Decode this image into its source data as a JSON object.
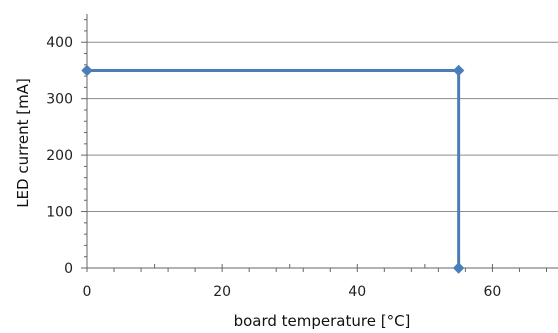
{
  "chart_data": {
    "type": "line",
    "title": "",
    "xlabel": "board temperature [°C]",
    "ylabel": "LED current [mA]",
    "xlim": [
      0,
      70
    ],
    "ylim": [
      0,
      450
    ],
    "x_ticks": [
      0,
      20,
      40,
      60
    ],
    "y_ticks": [
      0,
      100,
      200,
      300,
      400
    ],
    "x_tick_labels": [
      "0",
      "20",
      "40",
      "60"
    ],
    "y_tick_labels": [
      "0",
      "100",
      "200",
      "300",
      "400"
    ],
    "grid": "horizontal",
    "legend": "none",
    "series": [
      {
        "color": "#4a7ebb",
        "marker": "diamond",
        "points": [
          {
            "x": 0,
            "y": 350
          },
          {
            "x": 55,
            "y": 350
          },
          {
            "x": 55,
            "y": 0
          }
        ]
      }
    ]
  }
}
